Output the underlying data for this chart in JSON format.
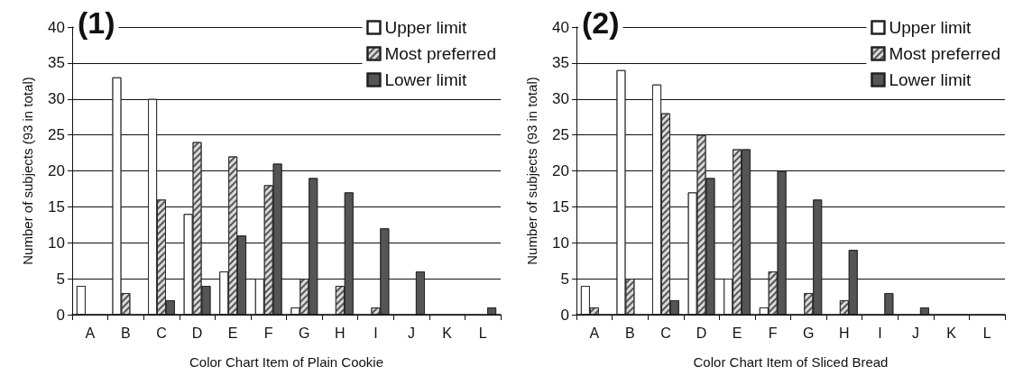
{
  "chart_data": [
    {
      "type": "bar",
      "title": "(1)",
      "xlabel": "Color Chart Item of Plain Cookie",
      "ylabel": "Number of subjects (93 in total)",
      "categories": [
        "A",
        "B",
        "C",
        "D",
        "E",
        "F",
        "G",
        "H",
        "I",
        "J",
        "K",
        "L"
      ],
      "series": [
        {
          "name": "Upper limit",
          "color": "#ffffff",
          "values": [
            4,
            33,
            30,
            14,
            6,
            5,
            1,
            0,
            0,
            0,
            0,
            0
          ]
        },
        {
          "name": "Most preferred",
          "color": "#d9d9d9",
          "values": [
            0,
            3,
            16,
            24,
            22,
            18,
            5,
            4,
            1,
            0,
            0,
            0
          ]
        },
        {
          "name": "Lower limit",
          "color": "#555555",
          "values": [
            0,
            0,
            2,
            4,
            11,
            21,
            19,
            17,
            12,
            6,
            0,
            1
          ]
        }
      ],
      "ylim": [
        0,
        40
      ],
      "yticks": [
        0,
        5,
        10,
        15,
        20,
        25,
        30,
        35,
        40
      ],
      "grid": "y",
      "legend": "top right"
    },
    {
      "type": "bar",
      "title": "(2)",
      "xlabel": "Color Chart Item of Sliced Bread",
      "ylabel": "Number of subjects (93 in total)",
      "categories": [
        "A",
        "B",
        "C",
        "D",
        "E",
        "F",
        "G",
        "H",
        "I",
        "J",
        "K",
        "L"
      ],
      "series": [
        {
          "name": "Upper limit",
          "color": "#ffffff",
          "values": [
            4,
            34,
            32,
            17,
            5,
            1,
            0,
            0,
            0,
            0,
            0,
            0
          ]
        },
        {
          "name": "Most preferred",
          "color": "#d9d9d9",
          "values": [
            1,
            5,
            28,
            25,
            23,
            6,
            3,
            2,
            0,
            0,
            0,
            0
          ]
        },
        {
          "name": "Lower limit",
          "color": "#555555",
          "values": [
            0,
            0,
            2,
            19,
            23,
            20,
            16,
            9,
            3,
            1,
            0,
            0
          ]
        }
      ],
      "ylim": [
        0,
        40
      ],
      "yticks": [
        0,
        5,
        10,
        15,
        20,
        25,
        30,
        35,
        40
      ],
      "grid": "y",
      "legend": "top right"
    }
  ]
}
